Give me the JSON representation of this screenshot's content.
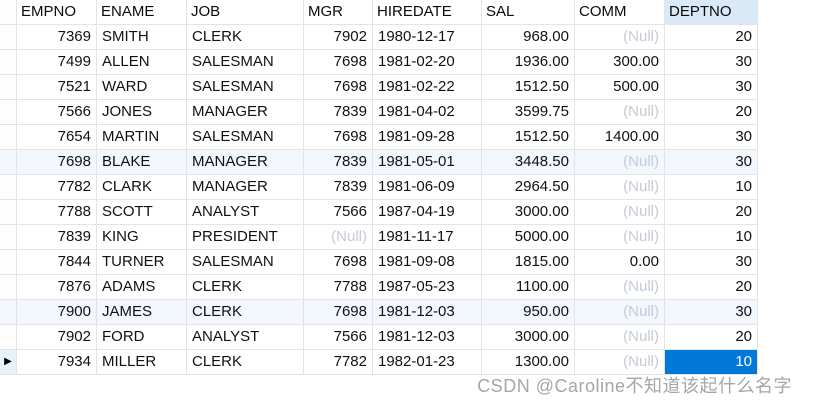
{
  "colors": {
    "selection_blue": "#0078d7",
    "selected_column_header_bg": "#d9e9f8",
    "highlighted_row_bg": "#f1f7fd",
    "null_text_gray": "#c5cbd6",
    "gridline": "#e4e4e4",
    "current_row_indicator_bg": "#e7f1fa",
    "watermark_gray": "#a6a6a6"
  },
  "table": {
    "columns": [
      {
        "key": "empno",
        "label": "EMPNO",
        "align": "right"
      },
      {
        "key": "ename",
        "label": "ENAME",
        "align": "left"
      },
      {
        "key": "job",
        "label": "JOB",
        "align": "left"
      },
      {
        "key": "mgr",
        "label": "MGR",
        "align": "right"
      },
      {
        "key": "hiredate",
        "label": "HIREDATE",
        "align": "left"
      },
      {
        "key": "sal",
        "label": "SAL",
        "align": "right"
      },
      {
        "key": "comm",
        "label": "COMM",
        "align": "right"
      },
      {
        "key": "deptno",
        "label": "DEPTNO",
        "align": "right"
      }
    ],
    "rows": [
      [
        "7369",
        "SMITH",
        "CLERK",
        "7902",
        "1980-12-17",
        "968.00",
        "(Null)",
        "20"
      ],
      [
        "7499",
        "ALLEN",
        "SALESMAN",
        "7698",
        "1981-02-20",
        "1936.00",
        "300.00",
        "30"
      ],
      [
        "7521",
        "WARD",
        "SALESMAN",
        "7698",
        "1981-02-22",
        "1512.50",
        "500.00",
        "30"
      ],
      [
        "7566",
        "JONES",
        "MANAGER",
        "7839",
        "1981-04-02",
        "3599.75",
        "(Null)",
        "20"
      ],
      [
        "7654",
        "MARTIN",
        "SALESMAN",
        "7698",
        "1981-09-28",
        "1512.50",
        "1400.00",
        "30"
      ],
      [
        "7698",
        "BLAKE",
        "MANAGER",
        "7839",
        "1981-05-01",
        "3448.50",
        "(Null)",
        "30"
      ],
      [
        "7782",
        "CLARK",
        "MANAGER",
        "7839",
        "1981-06-09",
        "2964.50",
        "(Null)",
        "10"
      ],
      [
        "7788",
        "SCOTT",
        "ANALYST",
        "7566",
        "1987-04-19",
        "3000.00",
        "(Null)",
        "20"
      ],
      [
        "7839",
        "KING",
        "PRESIDENT",
        "(Null)",
        "1981-11-17",
        "5000.00",
        "(Null)",
        "10"
      ],
      [
        "7844",
        "TURNER",
        "SALESMAN",
        "7698",
        "1981-09-08",
        "1815.00",
        "0.00",
        "30"
      ],
      [
        "7876",
        "ADAMS",
        "CLERK",
        "7788",
        "1987-05-23",
        "1100.00",
        "(Null)",
        "20"
      ],
      [
        "7900",
        "JAMES",
        "CLERK",
        "7698",
        "1981-12-03",
        "950.00",
        "(Null)",
        "30"
      ],
      [
        "7902",
        "FORD",
        "ANALYST",
        "7566",
        "1981-12-03",
        "3000.00",
        "(Null)",
        "20"
      ],
      [
        "7934",
        "MILLER",
        "CLERK",
        "7782",
        "1982-01-23",
        "1300.00",
        "(Null)",
        "10"
      ]
    ],
    "null_display": "(Null)",
    "highlighted_rows": [
      5,
      11
    ],
    "current_row": 13,
    "current_row_marker": "▶",
    "selected_cell": {
      "row": 13,
      "col": 7
    },
    "selected_column": "deptno"
  },
  "watermark": {
    "text": "CSDN @Caroline不知道该起什么名字"
  }
}
